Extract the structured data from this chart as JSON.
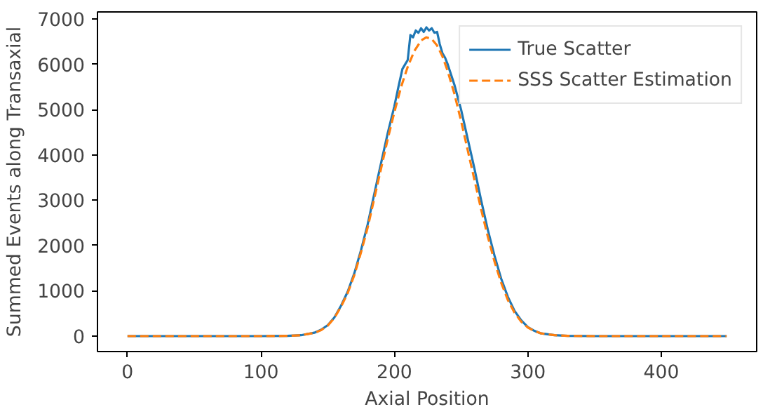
{
  "chart_data": {
    "type": "line",
    "xlabel": "Axial Position",
    "ylabel": "Summed Events along Transaxial",
    "xlim": [
      -22.5,
      471.5
    ],
    "ylim": [
      -341,
      7161
    ],
    "xticks": [
      0,
      100,
      200,
      300,
      400
    ],
    "yticks": [
      0,
      1000,
      2000,
      3000,
      4000,
      5000,
      6000,
      7000
    ],
    "grid": false,
    "legend": "top right",
    "series": [
      {
        "name": "True Scatter",
        "color": "#1f77b4",
        "line_style": "solid",
        "x": [
          0,
          50,
          100,
          120,
          130,
          140,
          145,
          150,
          155,
          160,
          165,
          170,
          175,
          180,
          185,
          190,
          195,
          200,
          203,
          206,
          208,
          210,
          212,
          214,
          216,
          218,
          220,
          222,
          224,
          226,
          228,
          230,
          232,
          234,
          236,
          238,
          240,
          245,
          250,
          255,
          260,
          265,
          270,
          275,
          280,
          285,
          290,
          295,
          300,
          305,
          310,
          320,
          330,
          350,
          400,
          449
        ],
        "values": [
          0,
          0,
          0,
          5,
          20,
          75,
          140,
          240,
          410,
          670,
          980,
          1390,
          1900,
          2470,
          3150,
          3820,
          4480,
          5080,
          5500,
          5900,
          6000,
          6100,
          6650,
          6600,
          6750,
          6700,
          6800,
          6720,
          6820,
          6750,
          6800,
          6700,
          6720,
          6450,
          6250,
          6150,
          6000,
          5550,
          5000,
          4350,
          3700,
          3000,
          2350,
          1780,
          1270,
          870,
          560,
          350,
          200,
          115,
          60,
          20,
          5,
          0,
          0,
          0
        ]
      },
      {
        "name": "SSS Scatter Estimation",
        "color": "#ff7f0e",
        "line_style": "dashed",
        "x": [
          0,
          50,
          100,
          120,
          130,
          140,
          145,
          150,
          155,
          160,
          165,
          170,
          175,
          180,
          185,
          190,
          195,
          200,
          205,
          210,
          215,
          220,
          224,
          228,
          232,
          236,
          240,
          245,
          250,
          255,
          260,
          265,
          270,
          275,
          280,
          285,
          290,
          295,
          300,
          305,
          310,
          320,
          330,
          350,
          400,
          449
        ],
        "values": [
          0,
          0,
          0,
          5,
          20,
          70,
          130,
          230,
          400,
          650,
          950,
          1350,
          1850,
          2400,
          3050,
          3700,
          4350,
          4950,
          5500,
          5950,
          6300,
          6530,
          6600,
          6560,
          6420,
          6180,
          5850,
          5350,
          4750,
          4100,
          3450,
          2800,
          2200,
          1650,
          1180,
          800,
          520,
          320,
          190,
          110,
          60,
          20,
          5,
          0,
          0,
          0
        ]
      }
    ]
  }
}
